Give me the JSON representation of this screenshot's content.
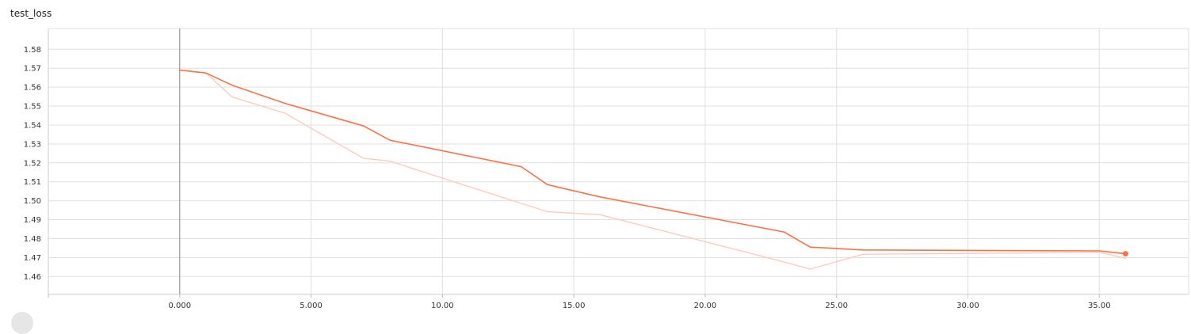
{
  "chart_data": {
    "type": "line",
    "title": "test_loss",
    "xlabel": "",
    "ylabel": "",
    "grid": true,
    "x_ticks": [
      "0.000",
      "5.000",
      "10.00",
      "15.00",
      "20.00",
      "25.00",
      "30.00",
      "35.00"
    ],
    "y_ticks": [
      "1.46",
      "1.47",
      "1.48",
      "1.49",
      "1.50",
      "1.51",
      "1.52",
      "1.53",
      "1.54",
      "1.55",
      "1.56",
      "1.57",
      "1.58"
    ],
    "xlim": [
      -5,
      38.4
    ],
    "ylim": [
      1.4505,
      1.591
    ],
    "colors": {
      "smoothed": "#ff7043",
      "raw": "#ffccbc",
      "axis": "#999999",
      "grid": "#e0e0e0"
    },
    "series": [
      {
        "role": "smoothed",
        "x": [
          0,
          1,
          2,
          4,
          7,
          8,
          13,
          14,
          16,
          23,
          24,
          26,
          35,
          36
        ],
        "y": [
          1.569,
          1.5675,
          1.561,
          1.5515,
          1.5395,
          1.532,
          1.518,
          1.5085,
          1.502,
          1.4835,
          1.4755,
          1.474,
          1.4735,
          1.472
        ]
      },
      {
        "role": "raw",
        "x": [
          0,
          1,
          2,
          4,
          7,
          8,
          13,
          14,
          16,
          23,
          24,
          26,
          35,
          36
        ],
        "y": [
          1.569,
          1.5675,
          1.5548,
          1.5463,
          1.5224,
          1.5209,
          1.4986,
          1.4942,
          1.4926,
          1.4677,
          1.4639,
          1.4717,
          1.4727,
          1.4696
        ]
      }
    ]
  }
}
